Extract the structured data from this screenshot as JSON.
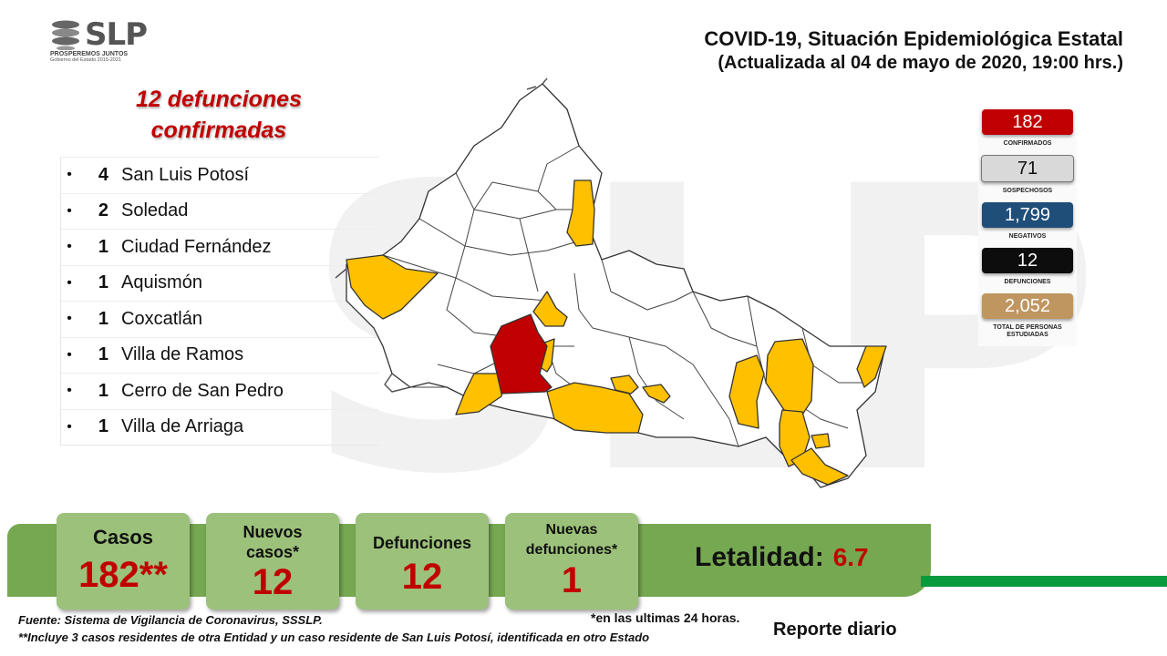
{
  "logo": {
    "text": "SLP",
    "tagline": "PROSPEREMOS JUNTOS",
    "subtitle": "Gobierno del Estado 2015-2021"
  },
  "header": {
    "title": "COVID-19, Situación Epidemiológica Estatal",
    "subtitle": "(Actualizada al 04 de mayo de 2020, 19:00 hrs.)"
  },
  "deaths": {
    "title_line1": "12 defunciones",
    "title_line2": "confirmadas",
    "items": [
      {
        "count": "4",
        "municipality": "San Luis Potosí"
      },
      {
        "count": "2",
        "municipality": "Soledad"
      },
      {
        "count": "1",
        "municipality": "Ciudad Fernández"
      },
      {
        "count": "1",
        "municipality": "Aquismón"
      },
      {
        "count": "1",
        "municipality": "Coxcatlán"
      },
      {
        "count": "1",
        "municipality": "Villa de Ramos"
      },
      {
        "count": "1",
        "municipality": "Cerro de San Pedro"
      },
      {
        "count": "1",
        "municipality": "Villa de Arriaga"
      }
    ]
  },
  "stats": [
    {
      "value": "182",
      "label": "CONFIRMADOS",
      "color": "#c00000",
      "text_color": "#ffffff"
    },
    {
      "value": "71",
      "label": "SOSPECHOSOS",
      "color": "#d9d9d9",
      "text_color": "#111111"
    },
    {
      "value": "1,799",
      "label": "NEGATIVOS",
      "color": "#1f4e79",
      "text_color": "#ffffff"
    },
    {
      "value": "12",
      "label": "DEFUNCIONES",
      "color": "#0d0d0d",
      "text_color": "#ffffff"
    },
    {
      "value": "2,052",
      "label": "TOTAL DE PERSONAS ESTUDIADAS",
      "color": "#c09660",
      "text_color": "#ffffff"
    }
  ],
  "map_colors": {
    "deaths": "#c00000",
    "cases": "#ffc000",
    "none": "#ffffff"
  },
  "summary": {
    "casos_label": "Casos",
    "casos_value": "182**",
    "nuevos_casos_label": "Nuevos casos*",
    "nuevos_casos_value": "12",
    "defunciones_label": "Defunciones",
    "defunciones_value": "12",
    "nuevas_defunciones_label": "Nuevas defunciones*",
    "nuevas_defunciones_value": "1",
    "letalidad_label": "Letalidad:",
    "letalidad_value": "6.7"
  },
  "footer": {
    "source": "Fuente: Sistema de Vigilancia de Coronavirus, SSSLP.",
    "note_24h": "*en las ultimas 24 horas.",
    "note_cases": "**Incluye 3 casos residentes de otra Entidad y un caso residente de San Luis Potosí, identificada en otro Estado",
    "report": "Reporte diario"
  }
}
